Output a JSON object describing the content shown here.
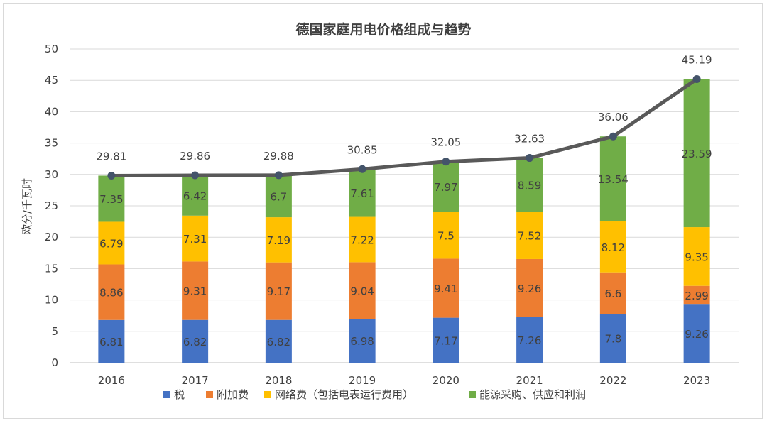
{
  "chart_data": {
    "type": "bar",
    "stacked": true,
    "title": "德国家庭用电价格组成与趋势",
    "ylabel": "欧分/千瓦时",
    "ylim": [
      0,
      50
    ],
    "yticks": [
      0,
      5,
      10,
      15,
      20,
      25,
      30,
      35,
      40,
      45,
      50
    ],
    "grid": true,
    "legend_position": "bottom",
    "categories": [
      "2016",
      "2017",
      "2018",
      "2019",
      "2020",
      "2021",
      "2022",
      "2023"
    ],
    "series": [
      {
        "name": "税",
        "color": "#4472C4",
        "values": [
          6.81,
          6.82,
          6.82,
          6.98,
          7.17,
          7.26,
          7.8,
          9.26
        ]
      },
      {
        "name": "附加费",
        "color": "#ED7D31",
        "values": [
          8.86,
          9.31,
          9.17,
          9.04,
          9.41,
          9.26,
          6.6,
          2.99
        ]
      },
      {
        "name": "网络费（包括电表运行费用）",
        "color": "#FFC000",
        "values": [
          6.79,
          7.31,
          7.19,
          7.22,
          7.5,
          7.52,
          8.12,
          9.35
        ]
      },
      {
        "name": "能源采购、供应和利润",
        "color": "#70AD47",
        "values": [
          7.35,
          6.42,
          6.7,
          7.61,
          7.97,
          8.59,
          13.54,
          23.59
        ]
      }
    ],
    "total_line": {
      "color": "#595959",
      "marker_color": "#44546A",
      "values": [
        29.81,
        29.86,
        29.88,
        30.85,
        32.05,
        32.63,
        36.06,
        45.19
      ]
    }
  }
}
